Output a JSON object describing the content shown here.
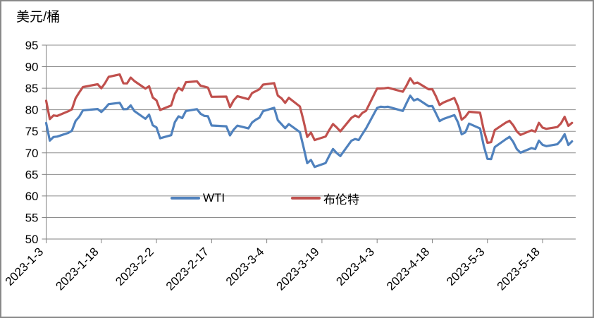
{
  "chart_data": {
    "type": "line",
    "title": "美元/桶",
    "xlabel": "",
    "ylabel": "美元/桶",
    "ylim": [
      50,
      95
    ],
    "y_tick_step": 5,
    "grid": true,
    "legend_position": "inside-bottom",
    "x_axis_max_day": 144,
    "x_tick_days": [
      0,
      15,
      30,
      45,
      60,
      75,
      90,
      105,
      120,
      135
    ],
    "x_tick_labels": [
      "2023-1-3",
      "2023-1-18",
      "2023-2-2",
      "2023-2-17",
      "2023-3-4",
      "2023-3-19",
      "2023-4-3",
      "2023-4-18",
      "2023-5-3",
      "2023-5-18"
    ],
    "dates": [
      "2023-1-3",
      "2023-1-4",
      "2023-1-5",
      "2023-1-6",
      "2023-1-9",
      "2023-1-10",
      "2023-1-11",
      "2023-1-12",
      "2023-1-13",
      "2023-1-17",
      "2023-1-18",
      "2023-1-19",
      "2023-1-20",
      "2023-1-23",
      "2023-1-24",
      "2023-1-25",
      "2023-1-26",
      "2023-1-27",
      "2023-1-30",
      "2023-1-31",
      "2023-2-1",
      "2023-2-2",
      "2023-2-3",
      "2023-2-6",
      "2023-2-7",
      "2023-2-8",
      "2023-2-9",
      "2023-2-10",
      "2023-2-13",
      "2023-2-14",
      "2023-2-15",
      "2023-2-16",
      "2023-2-17",
      "2023-2-21",
      "2023-2-22",
      "2023-2-23",
      "2023-2-24",
      "2023-2-27",
      "2023-2-28",
      "2023-3-1",
      "2023-3-2",
      "2023-3-3",
      "2023-3-6",
      "2023-3-7",
      "2023-3-8",
      "2023-3-9",
      "2023-3-10",
      "2023-3-13",
      "2023-3-14",
      "2023-3-15",
      "2023-3-16",
      "2023-3-17",
      "2023-3-20",
      "2023-3-21",
      "2023-3-22",
      "2023-3-23",
      "2023-3-24",
      "2023-3-27",
      "2023-3-28",
      "2023-3-29",
      "2023-3-30",
      "2023-3-31",
      "2023-4-3",
      "2023-4-4",
      "2023-4-5",
      "2023-4-6",
      "2023-4-10",
      "2023-4-11",
      "2023-4-12",
      "2023-4-13",
      "2023-4-14",
      "2023-4-17",
      "2023-4-18",
      "2023-4-19",
      "2023-4-20",
      "2023-4-21",
      "2023-4-24",
      "2023-4-25",
      "2023-4-26",
      "2023-4-27",
      "2023-4-28",
      "2023-5-1",
      "2023-5-2",
      "2023-5-3",
      "2023-5-4",
      "2023-5-5",
      "2023-5-8",
      "2023-5-9",
      "2023-5-10",
      "2023-5-11",
      "2023-5-12",
      "2023-5-15",
      "2023-5-16",
      "2023-5-17",
      "2023-5-18",
      "2023-5-19",
      "2023-5-22",
      "2023-5-23",
      "2023-5-24",
      "2023-5-25",
      "2023-5-26"
    ],
    "day_offsets": [
      0,
      1,
      2,
      3,
      6,
      7,
      8,
      9,
      10,
      14,
      15,
      16,
      17,
      20,
      21,
      22,
      23,
      24,
      27,
      28,
      29,
      30,
      31,
      34,
      35,
      36,
      37,
      38,
      41,
      42,
      43,
      44,
      45,
      49,
      50,
      51,
      52,
      55,
      56,
      57,
      58,
      59,
      62,
      63,
      64,
      65,
      66,
      69,
      70,
      71,
      72,
      73,
      76,
      77,
      78,
      79,
      80,
      83,
      84,
      85,
      86,
      87,
      90,
      91,
      92,
      93,
      97,
      98,
      99,
      100,
      101,
      104,
      105,
      106,
      107,
      108,
      111,
      112,
      113,
      114,
      115,
      118,
      119,
      120,
      121,
      122,
      125,
      126,
      127,
      128,
      129,
      132,
      133,
      134,
      135,
      136,
      139,
      140,
      141,
      142,
      143
    ],
    "series": [
      {
        "name": "WTI",
        "color": "#4F81BD",
        "values": [
          76.93,
          72.84,
          73.67,
          73.77,
          74.63,
          75.12,
          77.41,
          78.39,
          79.86,
          80.18,
          79.48,
          80.33,
          81.31,
          81.62,
          80.13,
          80.15,
          81.01,
          79.68,
          77.9,
          78.87,
          76.41,
          75.88,
          73.39,
          74.11,
          77.14,
          78.47,
          78.06,
          79.72,
          80.14,
          79.06,
          78.59,
          78.49,
          76.34,
          76.16,
          74.05,
          75.39,
          76.32,
          75.68,
          77.05,
          77.69,
          78.16,
          79.68,
          80.46,
          77.58,
          76.66,
          75.72,
          76.68,
          74.8,
          71.33,
          67.61,
          68.35,
          66.74,
          67.64,
          69.33,
          70.9,
          69.96,
          69.26,
          72.81,
          73.2,
          72.97,
          74.37,
          75.67,
          80.42,
          80.71,
          80.61,
          80.7,
          79.74,
          81.53,
          83.26,
          82.16,
          82.52,
          80.83,
          80.86,
          79.16,
          77.37,
          77.87,
          78.76,
          77.07,
          74.3,
          74.76,
          76.78,
          75.66,
          71.66,
          68.6,
          68.56,
          71.34,
          73.16,
          73.71,
          72.56,
          70.87,
          70.04,
          71.11,
          70.86,
          72.83,
          71.86,
          71.55,
          71.99,
          72.91,
          74.34,
          71.83,
          72.67
        ]
      },
      {
        "name": "布伦特",
        "color": "#C0504D",
        "values": [
          82.1,
          77.84,
          78.69,
          78.57,
          79.65,
          80.1,
          82.67,
          84.03,
          85.28,
          85.92,
          84.98,
          86.16,
          87.63,
          88.19,
          86.13,
          86.12,
          87.47,
          86.66,
          84.9,
          85.46,
          82.84,
          82.17,
          79.94,
          80.99,
          83.69,
          85.09,
          84.5,
          86.39,
          86.61,
          85.58,
          85.38,
          85.14,
          83.0,
          83.05,
          80.6,
          82.21,
          83.16,
          82.45,
          83.89,
          84.31,
          84.75,
          85.83,
          86.18,
          83.29,
          82.66,
          81.59,
          82.78,
          80.77,
          77.45,
          73.69,
          74.7,
          72.97,
          73.79,
          75.32,
          76.69,
          75.91,
          74.99,
          78.12,
          78.65,
          78.28,
          79.27,
          79.77,
          84.93,
          84.94,
          84.99,
          85.12,
          84.18,
          85.61,
          87.33,
          86.09,
          86.31,
          84.76,
          84.77,
          83.12,
          81.1,
          81.66,
          82.73,
          80.77,
          77.69,
          78.37,
          79.54,
          79.31,
          75.32,
          72.33,
          72.5,
          75.3,
          77.01,
          77.44,
          76.41,
          74.98,
          74.17,
          75.23,
          74.91,
          76.96,
          75.86,
          75.58,
          75.99,
          76.84,
          78.36,
          76.26,
          76.95
        ]
      }
    ]
  },
  "legend": {
    "wti_label": "WTI",
    "brent_label": "布伦特"
  },
  "style": {
    "grid_color": "#8E8E8E",
    "axis_color": "#808080",
    "text_color": "#000000"
  }
}
